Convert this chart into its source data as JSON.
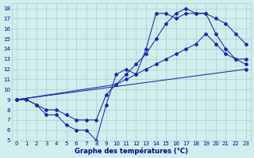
{
  "xlabel": "Graphe des températures (°C)",
  "xlim": [
    -0.5,
    23.5
  ],
  "ylim": [
    5,
    18.5
  ],
  "yticks": [
    5,
    6,
    7,
    8,
    9,
    10,
    11,
    12,
    13,
    14,
    15,
    16,
    17,
    18
  ],
  "xticks": [
    0,
    1,
    2,
    3,
    4,
    5,
    6,
    7,
    8,
    9,
    10,
    11,
    12,
    13,
    14,
    15,
    16,
    17,
    18,
    19,
    20,
    21,
    22,
    23
  ],
  "bg_color": "#d0eeee",
  "grid_color": "#aacccc",
  "line_color": "#2222aa",
  "series": [
    {
      "x": [
        0,
        1,
        2,
        3,
        4,
        5,
        6,
        7,
        8,
        9,
        10,
        11,
        12,
        13,
        14,
        15,
        16,
        17,
        18,
        19,
        20,
        21,
        22,
        23
      ],
      "y": [
        9.0,
        9.0,
        8.5,
        7.5,
        7.5,
        6.5,
        6.0,
        6.0,
        5.0,
        8.5,
        11.5,
        12.0,
        11.5,
        14.0,
        17.5,
        17.5,
        17.0,
        17.5,
        17.5,
        17.5,
        15.5,
        14.0,
        13.0,
        12.5
      ]
    },
    {
      "x": [
        0,
        1,
        2,
        3,
        4,
        5,
        6,
        7,
        8,
        9,
        10,
        11,
        12,
        13,
        14,
        15,
        16,
        17,
        18,
        19,
        20,
        21,
        22,
        23
      ],
      "y": [
        9.0,
        9.0,
        8.5,
        8.0,
        8.0,
        7.5,
        7.0,
        7.0,
        7.0,
        9.5,
        10.5,
        11.5,
        12.5,
        13.5,
        15.0,
        16.5,
        17.5,
        18.0,
        17.5,
        17.5,
        17.0,
        16.5,
        15.5,
        14.5
      ]
    },
    {
      "x": [
        0,
        10,
        11,
        12,
        13,
        14,
        15,
        16,
        17,
        18,
        19,
        20,
        21,
        22,
        23
      ],
      "y": [
        9.0,
        10.5,
        11.0,
        11.5,
        12.0,
        12.5,
        13.0,
        13.5,
        14.0,
        14.5,
        15.5,
        14.5,
        13.5,
        13.0,
        13.0
      ]
    },
    {
      "x": [
        0,
        23
      ],
      "y": [
        9.0,
        12.0
      ]
    }
  ],
  "figsize": [
    3.2,
    2.0
  ],
  "dpi": 100
}
